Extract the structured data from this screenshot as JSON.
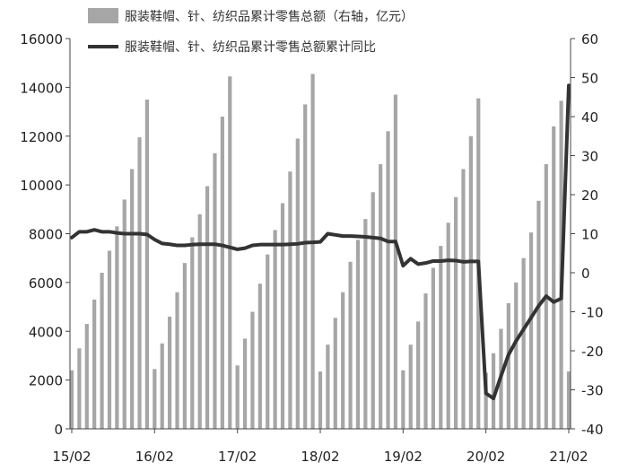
{
  "chart_data": {
    "type": "bar+line",
    "x_tick_labels": [
      "15/02",
      "16/02",
      "17/02",
      "18/02",
      "19/02",
      "20/02",
      "21/02"
    ],
    "legend": [
      {
        "label": "服装鞋帽、针、纺织品累计零售总额（右轴，亿元）",
        "kind": "bar",
        "color": "#a6a6a6"
      },
      {
        "label": "服装鞋帽、针、纺织品累计零售总额累计同比",
        "kind": "line",
        "color": "#333333"
      }
    ],
    "left_axis": {
      "ylim": [
        0,
        16000
      ],
      "ticks": [
        0,
        2000,
        4000,
        6000,
        8000,
        10000,
        12000,
        14000,
        16000
      ]
    },
    "right_axis": {
      "ylim": [
        -40,
        60
      ],
      "ticks": [
        -40,
        -30,
        -20,
        -10,
        0,
        10,
        20,
        30,
        40,
        50,
        60
      ]
    },
    "series": [
      {
        "name": "服装鞋帽、针、纺织品累计零售总额（右轴，亿元）",
        "type": "bar",
        "axis": "left",
        "color": "#a6a6a6",
        "x": [
          "2015-02",
          "2015-03",
          "2015-04",
          "2015-05",
          "2015-06",
          "2015-07",
          "2015-08",
          "2015-09",
          "2015-10",
          "2015-11",
          "2015-12",
          "2016-02",
          "2016-03",
          "2016-04",
          "2016-05",
          "2016-06",
          "2016-07",
          "2016-08",
          "2016-09",
          "2016-10",
          "2016-11",
          "2016-12",
          "2017-02",
          "2017-03",
          "2017-04",
          "2017-05",
          "2017-06",
          "2017-07",
          "2017-08",
          "2017-09",
          "2017-10",
          "2017-11",
          "2017-12",
          "2018-02",
          "2018-03",
          "2018-04",
          "2018-05",
          "2018-06",
          "2018-07",
          "2018-08",
          "2018-09",
          "2018-10",
          "2018-11",
          "2018-12",
          "2019-02",
          "2019-03",
          "2019-04",
          "2019-05",
          "2019-06",
          "2019-07",
          "2019-08",
          "2019-09",
          "2019-10",
          "2019-11",
          "2019-12",
          "2020-02",
          "2020-03",
          "2020-04",
          "2020-05",
          "2020-06",
          "2020-07",
          "2020-08",
          "2020-09",
          "2020-10",
          "2020-11",
          "2020-12",
          "2021-02"
        ],
        "values": [
          2400,
          3300,
          4300,
          5300,
          6400,
          7300,
          8300,
          9400,
          10650,
          11950,
          13500,
          2450,
          3500,
          4600,
          5600,
          6800,
          7850,
          8800,
          9950,
          11300,
          12800,
          14450,
          2600,
          3700,
          4800,
          5950,
          7150,
          8150,
          9250,
          10550,
          11900,
          13300,
          14550,
          2350,
          3450,
          4550,
          5600,
          6850,
          7750,
          8600,
          9700,
          10850,
          12200,
          13700,
          2400,
          3450,
          4400,
          5550,
          6600,
          7500,
          8450,
          9500,
          10650,
          12000,
          13550,
          2300,
          3100,
          4100,
          5150,
          6000,
          7000,
          8050,
          9350,
          10850,
          12400,
          13450,
          2350
        ]
      },
      {
        "name": "服装鞋帽、针、纺织品累计零售总额累计同比",
        "type": "line",
        "axis": "right",
        "color": "#333333",
        "x": [
          "2015-02",
          "2015-03",
          "2015-04",
          "2015-05",
          "2015-06",
          "2015-07",
          "2015-08",
          "2015-09",
          "2015-10",
          "2015-11",
          "2015-12",
          "2016-02",
          "2016-03",
          "2016-04",
          "2016-05",
          "2016-06",
          "2016-07",
          "2016-08",
          "2016-09",
          "2016-10",
          "2016-11",
          "2016-12",
          "2017-02",
          "2017-03",
          "2017-04",
          "2017-05",
          "2017-06",
          "2017-07",
          "2017-08",
          "2017-09",
          "2017-10",
          "2017-11",
          "2017-12",
          "2018-02",
          "2018-03",
          "2018-04",
          "2018-05",
          "2018-06",
          "2018-07",
          "2018-08",
          "2018-09",
          "2018-10",
          "2018-11",
          "2018-12",
          "2019-02",
          "2019-03",
          "2019-04",
          "2019-05",
          "2019-06",
          "2019-07",
          "2019-08",
          "2019-09",
          "2019-10",
          "2019-11",
          "2019-12",
          "2020-02",
          "2020-03",
          "2020-04",
          "2020-05",
          "2020-06",
          "2020-07",
          "2020-08",
          "2020-09",
          "2020-10",
          "2020-11",
          "2020-12",
          "2021-02"
        ],
        "values": [
          9,
          10.5,
          10.5,
          11,
          10.5,
          10.5,
          10.2,
          10,
          10,
          10,
          9.8,
          8.5,
          7.5,
          7.3,
          7,
          7,
          7.2,
          7.3,
          7.3,
          7.3,
          7,
          6.5,
          6,
          6.3,
          7,
          7.2,
          7.2,
          7.2,
          7.2,
          7.3,
          7.4,
          7.7,
          7.8,
          7.9,
          10,
          9.7,
          9.4,
          9.4,
          9.3,
          9.2,
          9,
          8.8,
          8,
          8,
          1.8,
          3.6,
          2.2,
          2.5,
          3,
          3,
          3.2,
          3.1,
          2.8,
          2.9,
          2.9,
          -30.9,
          -32.2,
          -26.5,
          -21,
          -17.5,
          -14.5,
          -11.5,
          -8.5,
          -6,
          -7.5,
          -6.6,
          48
        ]
      }
    ]
  }
}
